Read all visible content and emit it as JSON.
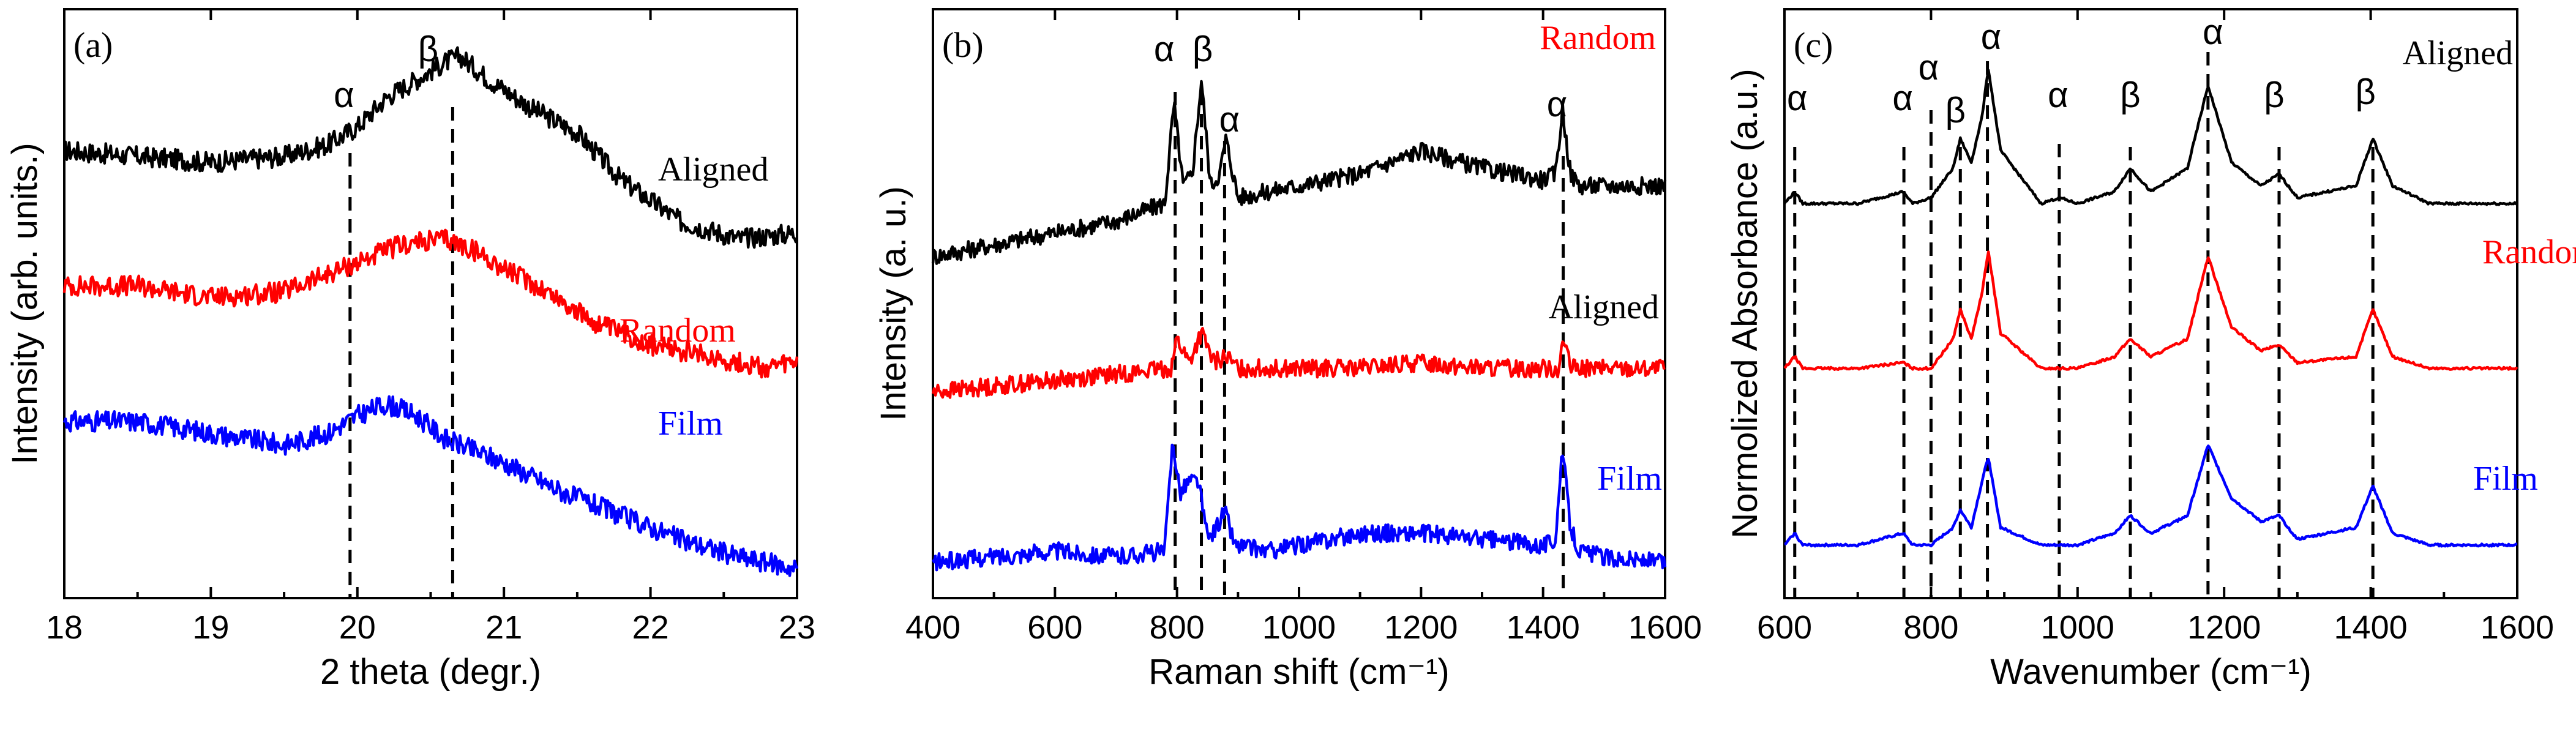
{
  "chart_data": [
    {
      "panel": "(a)",
      "type": "line",
      "xlabel": "2 theta (degr.)",
      "ylabel": "Intensity (arb. units.)",
      "xlim": [
        18,
        23
      ],
      "xticks": [
        18,
        19,
        20,
        21,
        22,
        23
      ],
      "series": [
        {
          "name": "Aligned",
          "color": "#000000",
          "x": [
            18,
            18.5,
            19,
            19.5,
            19.8,
            20,
            20.2,
            20.4,
            20.6,
            20.7,
            20.9,
            21.2,
            21.5,
            21.8,
            22.2,
            22.6,
            23
          ],
          "y": [
            0.76,
            0.75,
            0.74,
            0.75,
            0.77,
            0.8,
            0.85,
            0.88,
            0.91,
            0.92,
            0.88,
            0.83,
            0.79,
            0.71,
            0.64,
            0.61,
            0.62
          ]
        },
        {
          "name": "Random",
          "color": "#ff0000",
          "x": [
            18,
            18.5,
            19,
            19.5,
            19.8,
            20,
            20.3,
            20.6,
            20.8,
            21,
            21.3,
            21.6,
            22,
            22.4,
            22.8,
            23
          ],
          "y": [
            0.53,
            0.53,
            0.51,
            0.52,
            0.55,
            0.57,
            0.6,
            0.61,
            0.59,
            0.56,
            0.52,
            0.47,
            0.43,
            0.41,
            0.39,
            0.4
          ]
        },
        {
          "name": "Film",
          "color": "#0000ff",
          "x": [
            18,
            18.5,
            19,
            19.5,
            19.8,
            20,
            20.2,
            20.4,
            20.6,
            21,
            21.4,
            21.8,
            22.2,
            22.6,
            23
          ],
          "y": [
            0.3,
            0.3,
            0.28,
            0.26,
            0.28,
            0.31,
            0.33,
            0.31,
            0.27,
            0.23,
            0.18,
            0.14,
            0.1,
            0.07,
            0.05
          ]
        }
      ],
      "markers": [
        {
          "x": 19.95,
          "label": "α"
        },
        {
          "x": 20.65,
          "label": "β"
        }
      ]
    },
    {
      "panel": "(b)",
      "type": "line",
      "xlabel": "Raman shift (cm⁻¹)",
      "ylabel": "Intensity (a. u.)",
      "xlim": [
        400,
        1600
      ],
      "xticks": [
        400,
        600,
        800,
        1000,
        1200,
        1400,
        1600
      ],
      "series": [
        {
          "name": "Aligned",
          "color": "#000000",
          "x": [
            400,
            500,
            600,
            700,
            780,
            795,
            810,
            825,
            840,
            855,
            870,
            880,
            900,
            1000,
            1100,
            1200,
            1300,
            1400,
            1420,
            1432,
            1445,
            1460,
            1500,
            1600
          ],
          "y": [
            0.58,
            0.6,
            0.62,
            0.64,
            0.67,
            0.84,
            0.7,
            0.72,
            0.88,
            0.7,
            0.72,
            0.78,
            0.68,
            0.7,
            0.72,
            0.76,
            0.73,
            0.71,
            0.72,
            0.83,
            0.72,
            0.7,
            0.7,
            0.7
          ]
        },
        {
          "name": "Random",
          "color": "#ff0000",
          "x": [
            400,
            500,
            600,
            700,
            790,
            800,
            820,
            840,
            860,
            880,
            900,
            1000,
            1100,
            1200,
            1300,
            1400,
            1425,
            1433,
            1445,
            1500,
            1600
          ],
          "y": [
            0.35,
            0.36,
            0.37,
            0.38,
            0.39,
            0.44,
            0.4,
            0.45,
            0.4,
            0.41,
            0.39,
            0.39,
            0.39,
            0.4,
            0.39,
            0.39,
            0.39,
            0.44,
            0.39,
            0.39,
            0.39
          ]
        },
        {
          "name": "Film",
          "color": "#0000ff",
          "x": [
            400,
            500,
            600,
            700,
            780,
            793,
            805,
            820,
            835,
            850,
            865,
            878,
            895,
            950,
            1000,
            1100,
            1200,
            1300,
            1400,
            1420,
            1432,
            1445,
            1460,
            1500,
            1600
          ],
          "y": [
            0.06,
            0.07,
            0.08,
            0.07,
            0.08,
            0.27,
            0.18,
            0.2,
            0.2,
            0.1,
            0.12,
            0.15,
            0.09,
            0.08,
            0.09,
            0.11,
            0.11,
            0.1,
            0.09,
            0.1,
            0.25,
            0.12,
            0.08,
            0.07,
            0.06
          ]
        }
      ],
      "markers": [
        {
          "x": 797,
          "label": "α"
        },
        {
          "x": 840,
          "label": "β"
        },
        {
          "x": 878,
          "label": "α"
        },
        {
          "x": 1433,
          "label": "α"
        }
      ]
    },
    {
      "panel": "(c)",
      "type": "line",
      "xlabel": "Wavenumber (cm⁻¹)",
      "ylabel": "Normolized Absorbance (a.u.)",
      "xlim": [
        600,
        1600
      ],
      "xticks": [
        600,
        800,
        1000,
        1200,
        1400,
        1600
      ],
      "series": [
        {
          "name": "Aligned",
          "color": "#000000",
          "x": [
            600,
            614,
            625,
            700,
            762,
            775,
            800,
            830,
            840,
            855,
            870,
            878,
            895,
            950,
            975,
            1000,
            1050,
            1072,
            1100,
            1150,
            1178,
            1210,
            1250,
            1275,
            1300,
            1380,
            1403,
            1430,
            1480,
            1600
          ],
          "y": [
            0.67,
            0.69,
            0.67,
            0.67,
            0.69,
            0.67,
            0.68,
            0.73,
            0.78,
            0.74,
            0.82,
            0.9,
            0.76,
            0.67,
            0.68,
            0.67,
            0.69,
            0.73,
            0.69,
            0.73,
            0.87,
            0.74,
            0.7,
            0.72,
            0.68,
            0.7,
            0.78,
            0.7,
            0.67,
            0.67
          ]
        },
        {
          "name": "Random",
          "color": "#ff0000",
          "x": [
            600,
            614,
            625,
            700,
            762,
            775,
            800,
            830,
            840,
            855,
            870,
            878,
            895,
            950,
            1000,
            1050,
            1072,
            1100,
            1150,
            1178,
            1210,
            1250,
            1275,
            1300,
            1380,
            1403,
            1430,
            1480,
            1600
          ],
          "y": [
            0.39,
            0.41,
            0.39,
            0.39,
            0.4,
            0.39,
            0.39,
            0.44,
            0.49,
            0.44,
            0.52,
            0.59,
            0.45,
            0.39,
            0.39,
            0.41,
            0.44,
            0.41,
            0.44,
            0.58,
            0.46,
            0.42,
            0.43,
            0.4,
            0.41,
            0.49,
            0.41,
            0.39,
            0.39
          ]
        },
        {
          "name": "Film",
          "color": "#0000ff",
          "x": [
            600,
            614,
            625,
            700,
            762,
            775,
            800,
            830,
            840,
            855,
            870,
            878,
            895,
            950,
            1000,
            1050,
            1072,
            1100,
            1150,
            1178,
            1210,
            1250,
            1275,
            1300,
            1380,
            1403,
            1430,
            1480,
            1600
          ],
          "y": [
            0.09,
            0.11,
            0.09,
            0.09,
            0.11,
            0.09,
            0.09,
            0.12,
            0.15,
            0.12,
            0.2,
            0.24,
            0.12,
            0.09,
            0.09,
            0.11,
            0.14,
            0.11,
            0.14,
            0.26,
            0.17,
            0.13,
            0.14,
            0.1,
            0.12,
            0.19,
            0.11,
            0.09,
            0.09
          ]
        }
      ],
      "markers": [
        {
          "x": 614,
          "label": "α"
        },
        {
          "x": 763,
          "label": "α"
        },
        {
          "x": 800,
          "label": "α"
        },
        {
          "x": 840,
          "label": "β"
        },
        {
          "x": 877,
          "label": "α"
        },
        {
          "x": 975,
          "label": "α"
        },
        {
          "x": 1072,
          "label": "β"
        },
        {
          "x": 1178,
          "label": "α"
        },
        {
          "x": 1275,
          "label": "β"
        },
        {
          "x": 1403,
          "label": "β"
        }
      ]
    }
  ]
}
